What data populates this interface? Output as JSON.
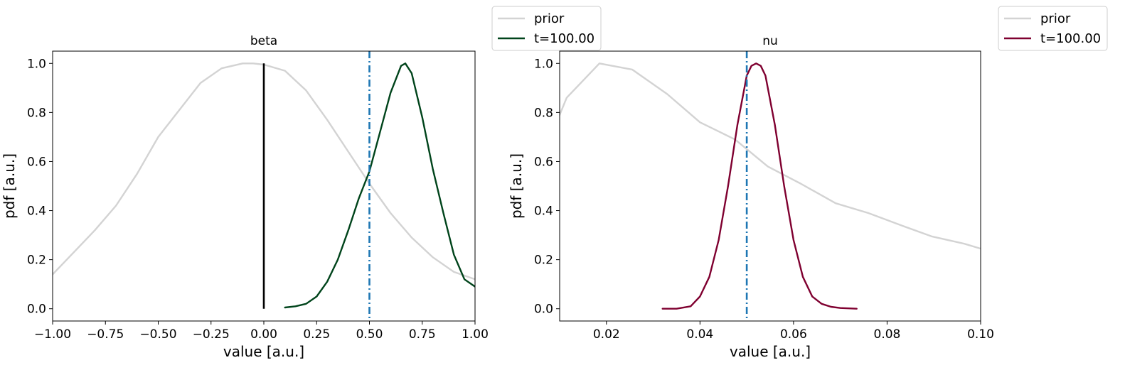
{
  "chart_data": [
    {
      "type": "line",
      "title": "beta",
      "xlabel": "value [a.u.]",
      "ylabel": "pdf [a.u.]",
      "xlim": [
        -1.0,
        1.0
      ],
      "ylim": [
        -0.05,
        1.05
      ],
      "xticks": [
        -1.0,
        -0.75,
        -0.5,
        -0.25,
        0.0,
        0.25,
        0.5,
        0.75,
        1.0
      ],
      "xtick_labels": [
        "−1.00",
        "−0.75",
        "−0.50",
        "−0.25",
        "0.00",
        "0.25",
        "0.50",
        "0.75",
        "1.00"
      ],
      "yticks": [
        0.0,
        0.2,
        0.4,
        0.6,
        0.8,
        1.0
      ],
      "ytick_labels": [
        "0.0",
        "0.2",
        "0.4",
        "0.6",
        "0.8",
        "1.0"
      ],
      "grid": false,
      "legend_position": "outside-top-right",
      "vlines": [
        {
          "x": 0.5,
          "ymin": -0.05,
          "ymax": 1.05,
          "style": "dashdot",
          "color": "#1f77b4"
        },
        {
          "x": 0.0,
          "ymin": 0.0,
          "ymax": 1.0,
          "style": "solid",
          "color": "#000000"
        }
      ],
      "series": [
        {
          "name": "prior",
          "color": "#d3d3d3",
          "x": [
            -1.0,
            -0.9,
            -0.8,
            -0.7,
            -0.6,
            -0.5,
            -0.4,
            -0.3,
            -0.2,
            -0.1,
            -0.05,
            0.0,
            0.1,
            0.2,
            0.3,
            0.4,
            0.5,
            0.6,
            0.7,
            0.8,
            0.9,
            1.0
          ],
          "y": [
            0.14,
            0.23,
            0.32,
            0.42,
            0.55,
            0.7,
            0.81,
            0.92,
            0.98,
            1.0,
            1.0,
            0.995,
            0.97,
            0.89,
            0.77,
            0.64,
            0.51,
            0.39,
            0.29,
            0.21,
            0.15,
            0.12
          ]
        },
        {
          "name": "t=100.00",
          "color": "#00441b",
          "x": [
            0.1,
            0.15,
            0.2,
            0.25,
            0.3,
            0.35,
            0.4,
            0.45,
            0.5,
            0.55,
            0.6,
            0.65,
            0.67,
            0.7,
            0.75,
            0.8,
            0.85,
            0.9,
            0.95,
            1.0
          ],
          "y": [
            0.005,
            0.01,
            0.02,
            0.05,
            0.11,
            0.2,
            0.32,
            0.45,
            0.56,
            0.72,
            0.88,
            0.99,
            1.0,
            0.96,
            0.78,
            0.57,
            0.39,
            0.22,
            0.12,
            0.09
          ]
        }
      ]
    },
    {
      "type": "line",
      "title": "nu",
      "xlabel": "value [a.u.]",
      "ylabel": "pdf [a.u.]",
      "xlim": [
        0.01,
        0.1
      ],
      "ylim": [
        -0.05,
        1.05
      ],
      "xticks": [
        0.02,
        0.04,
        0.06,
        0.08,
        0.1
      ],
      "xtick_labels": [
        "0.02",
        "0.04",
        "0.06",
        "0.08",
        "0.10"
      ],
      "yticks": [
        0.0,
        0.2,
        0.4,
        0.6,
        0.8,
        1.0
      ],
      "ytick_labels": [
        "0.0",
        "0.2",
        "0.4",
        "0.6",
        "0.8",
        "1.0"
      ],
      "grid": false,
      "legend_position": "outside-top-right",
      "vlines": [
        {
          "x": 0.05,
          "ymin": -0.05,
          "ymax": 1.05,
          "style": "dashdot",
          "color": "#1f77b4"
        }
      ],
      "series": [
        {
          "name": "prior",
          "color": "#d3d3d3",
          "x": [
            0.01,
            0.0115,
            0.0185,
            0.0255,
            0.033,
            0.04,
            0.0475,
            0.0545,
            0.0615,
            0.069,
            0.076,
            0.083,
            0.0895,
            0.0965,
            0.1
          ],
          "y": [
            0.79,
            0.86,
            1.0,
            0.975,
            0.875,
            0.76,
            0.69,
            0.58,
            0.51,
            0.43,
            0.39,
            0.34,
            0.295,
            0.265,
            0.245
          ]
        },
        {
          "name": "t=100.00",
          "color": "#7f0030",
          "x": [
            0.032,
            0.035,
            0.038,
            0.04,
            0.042,
            0.044,
            0.046,
            0.048,
            0.05,
            0.051,
            0.052,
            0.053,
            0.054,
            0.056,
            0.058,
            0.06,
            0.062,
            0.064,
            0.066,
            0.068,
            0.07,
            0.0735
          ],
          "y": [
            0.0,
            0.0,
            0.01,
            0.05,
            0.13,
            0.28,
            0.5,
            0.75,
            0.95,
            0.99,
            1.0,
            0.99,
            0.95,
            0.75,
            0.5,
            0.28,
            0.13,
            0.05,
            0.02,
            0.008,
            0.003,
            0.0
          ]
        }
      ]
    }
  ]
}
